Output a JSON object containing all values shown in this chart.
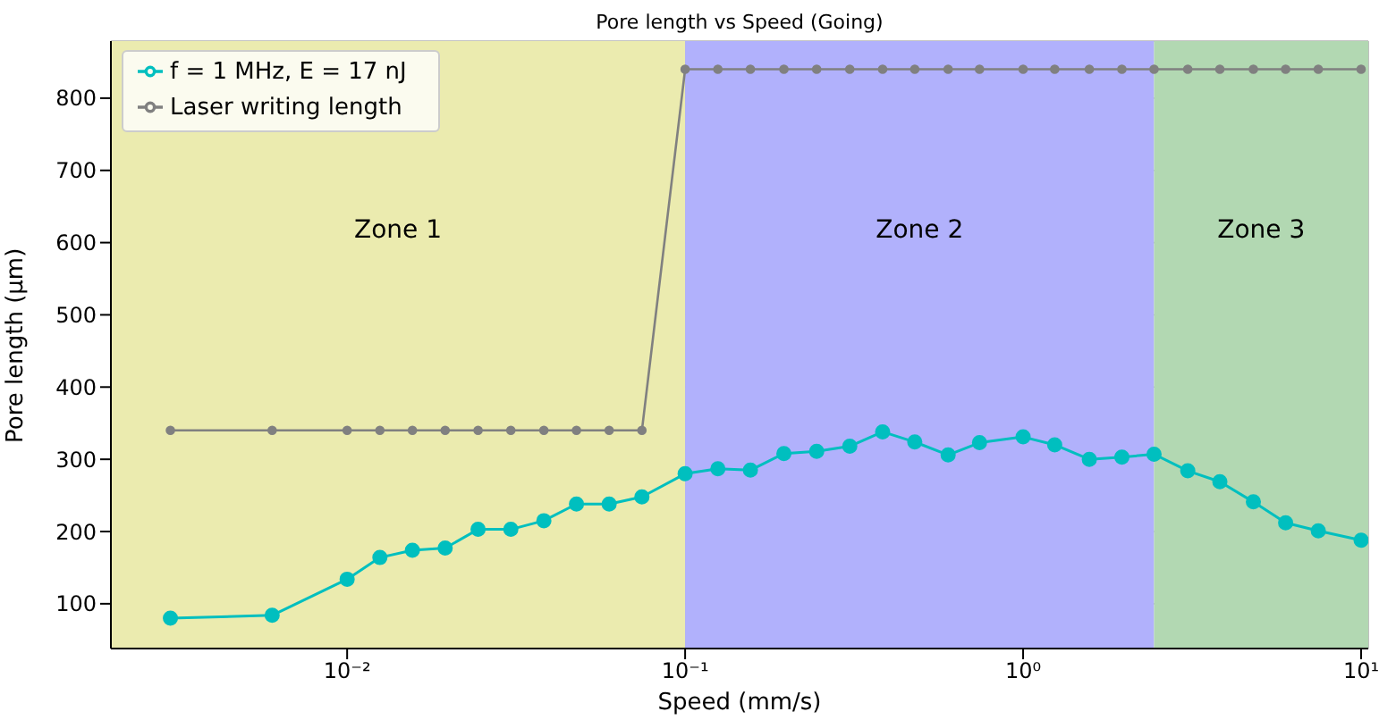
{
  "chart_data": {
    "type": "line",
    "title": "Pore length vs Speed (Going)",
    "xlabel": "Speed (mm/s)",
    "ylabel": "Pore length (μm)",
    "x": [
      0.003,
      0.006,
      0.01,
      0.0125,
      0.0156,
      0.0195,
      0.0244,
      0.0305,
      0.0382,
      0.0477,
      0.0596,
      0.0745,
      0.1,
      0.125,
      0.156,
      0.196,
      0.245,
      0.307,
      0.384,
      0.478,
      0.6,
      0.743,
      1.0,
      1.24,
      1.57,
      1.96,
      2.44,
      3.07,
      3.82,
      4.8,
      5.98,
      7.47,
      10.0
    ],
    "series": [
      {
        "name": "f = 1 MHz, E = 17 nJ",
        "color": "#00bfbf",
        "values": [
          80,
          84,
          134,
          164,
          174,
          177,
          203,
          203,
          215,
          238,
          238,
          248,
          280,
          287,
          285,
          308,
          311,
          318,
          338,
          324,
          306,
          323,
          331,
          320,
          300,
          303,
          307,
          284,
          269,
          241,
          212,
          201,
          188
        ]
      },
      {
        "name": "Laser writing length",
        "color": "#808080",
        "values": [
          340,
          340,
          340,
          340,
          340,
          340,
          340,
          340,
          340,
          340,
          340,
          340,
          840,
          840,
          840,
          840,
          840,
          840,
          840,
          840,
          840,
          840,
          840,
          840,
          840,
          840,
          840,
          840,
          840,
          840,
          840,
          840,
          840
        ]
      }
    ],
    "bands": [
      {
        "axis": "x",
        "from": 0.002,
        "to": 0.1,
        "label": "Zone 1",
        "color": "#ebebaf"
      },
      {
        "axis": "x",
        "from": 0.1,
        "to": 2.44,
        "label": "Zone 2",
        "color": "#b1b1fc"
      },
      {
        "axis": "x",
        "from": 2.44,
        "to": 10.5,
        "label": "Zone 3",
        "color": "#b2d8b2"
      }
    ],
    "xlim": [
      0.002,
      10.5
    ],
    "xticks": [
      {
        "value": 0.01,
        "label": "10⁻²"
      },
      {
        "value": 0.1,
        "label": "10⁻¹"
      },
      {
        "value": 1,
        "label": "10⁰"
      },
      {
        "value": 10,
        "label": "10¹"
      }
    ],
    "ylim": [
      38,
      879
    ],
    "yticks": [
      100,
      200,
      300,
      400,
      500,
      600,
      700,
      800
    ],
    "log": "x",
    "grid": true,
    "legend": "top left",
    "marker": "circle",
    "line_style": "solid"
  }
}
